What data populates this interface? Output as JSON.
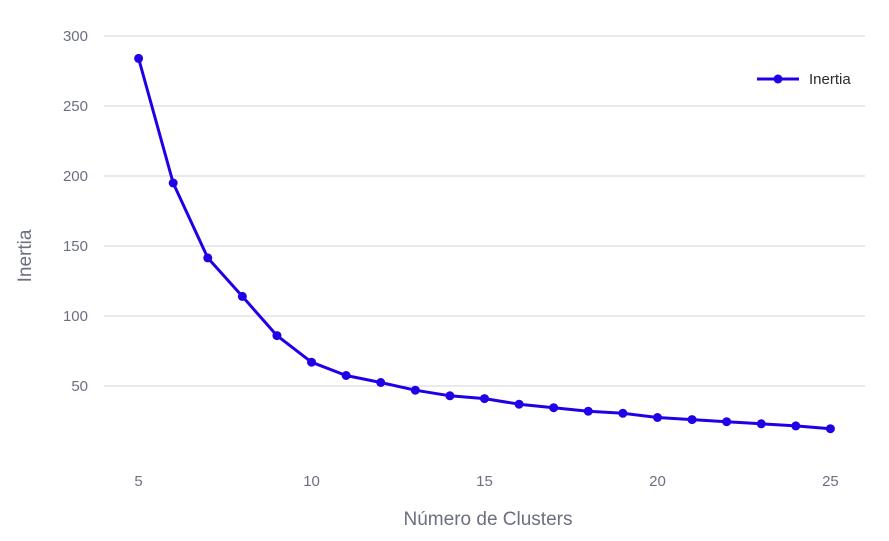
{
  "chart_data": {
    "type": "line",
    "title": "",
    "xlabel": "Número de Clusters",
    "ylabel": "Inertia",
    "xlim": [
      4,
      26
    ],
    "ylim": [
      0,
      300
    ],
    "xticks": [
      5,
      10,
      15,
      20,
      25
    ],
    "yticks": [
      50,
      100,
      150,
      200,
      250,
      300
    ],
    "grid": "horizontal",
    "legend_position": "top-right",
    "series": [
      {
        "name": "Inertia",
        "color": "#2000e6",
        "marker": "circle",
        "x": [
          5,
          6,
          7,
          8,
          9,
          10,
          11,
          12,
          13,
          14,
          15,
          16,
          17,
          18,
          19,
          20,
          21,
          22,
          23,
          24,
          25
        ],
        "y": [
          284,
          195,
          141.5,
          114,
          86,
          67,
          57.5,
          52.5,
          47,
          43,
          41,
          37,
          34.5,
          32,
          30.5,
          27.5,
          26,
          24.5,
          23,
          21.5,
          19.5
        ]
      }
    ]
  }
}
